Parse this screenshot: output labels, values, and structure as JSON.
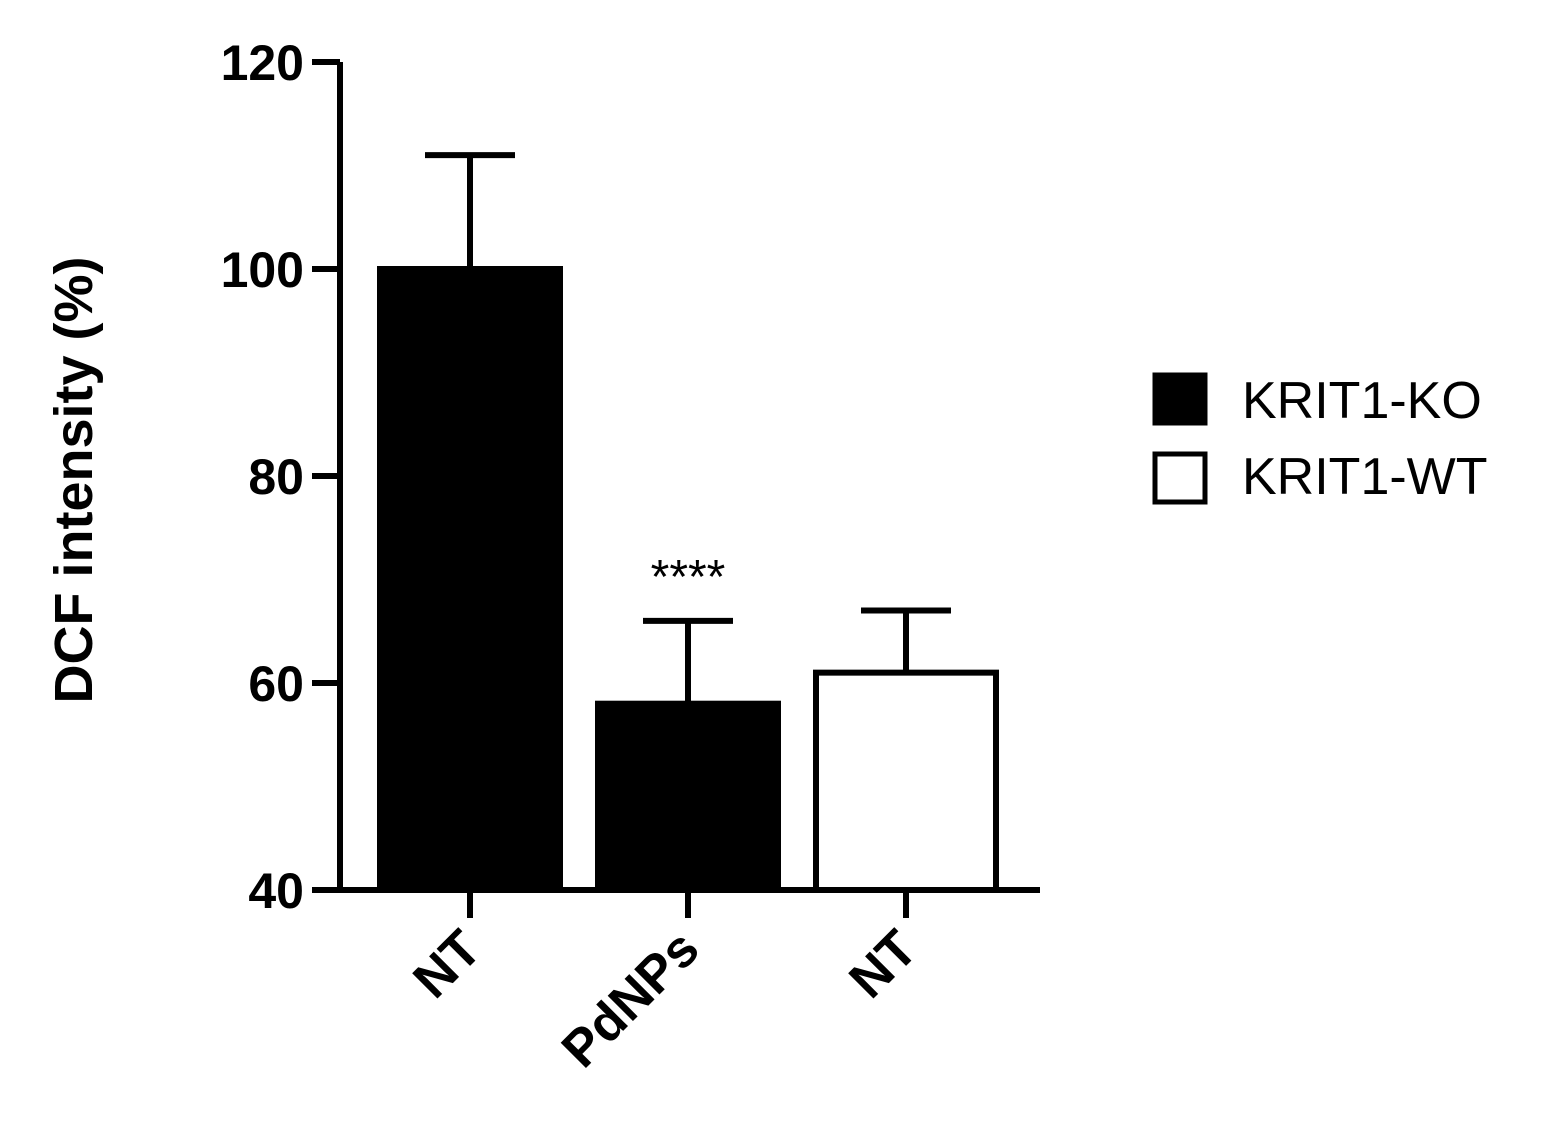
{
  "chart_data": {
    "type": "bar",
    "title": "",
    "xlabel": "",
    "ylabel": "DCF intensity (%)",
    "ylim": [
      40,
      120
    ],
    "yticks": [
      40,
      60,
      80,
      100,
      120
    ],
    "categories": [
      "NT",
      "PdNPs",
      "NT"
    ],
    "values": [
      100,
      58,
      61
    ],
    "errors": [
      11,
      8,
      6
    ],
    "bar_groups": [
      "KRIT1-KO",
      "KRIT1-KO",
      "KRIT1-WT"
    ],
    "annotations": [
      {
        "category_index": 1,
        "text": "****"
      }
    ],
    "legend": {
      "placement": "right",
      "entries": [
        {
          "label": "KRIT1-KO",
          "fill": "#000000"
        },
        {
          "label": "KRIT1-WT",
          "fill": "#ffffff"
        }
      ]
    },
    "grid": false
  }
}
